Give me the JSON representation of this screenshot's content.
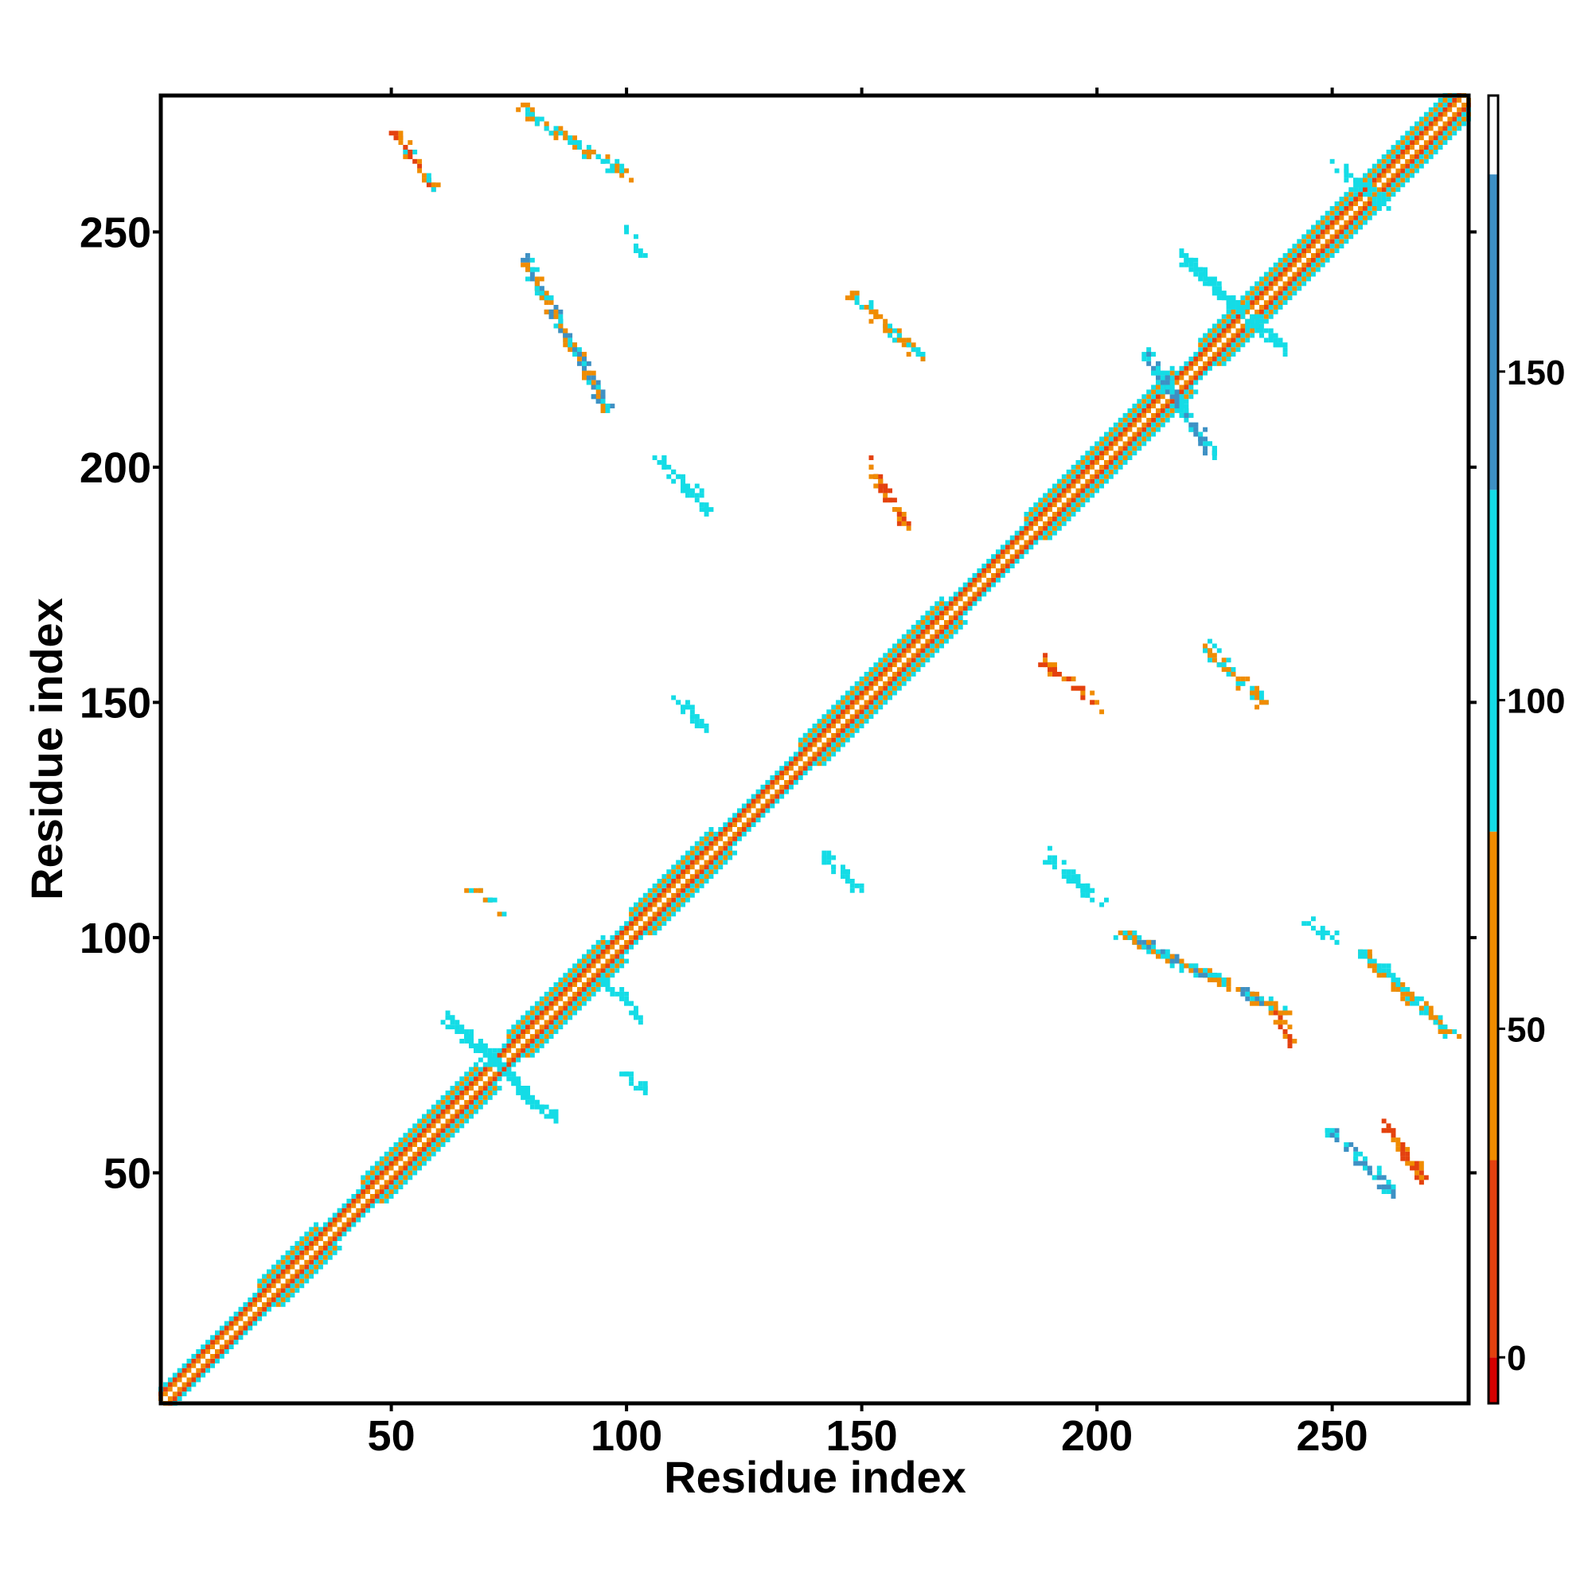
{
  "chart_data": {
    "type": "heatmap",
    "title": "",
    "xlabel": "Residue index",
    "ylabel": "Residue index",
    "xlim": [
      1,
      279
    ],
    "ylim": [
      1,
      279
    ],
    "x_ticks": [
      50,
      100,
      150,
      200,
      250
    ],
    "y_ticks": [
      50,
      100,
      150,
      200,
      250
    ],
    "grid": false,
    "colorbar": {
      "ticks": [
        0,
        50,
        100,
        150
      ],
      "range": [
        -7,
        192
      ],
      "segments": [
        {
          "from": -7,
          "to": 0,
          "color": "#d50000"
        },
        {
          "from": 0,
          "to": 30,
          "color": "#e4410f"
        },
        {
          "from": 30,
          "to": 80,
          "color": "#f08c00"
        },
        {
          "from": 80,
          "to": 132,
          "color": "#14dce6"
        },
        {
          "from": 132,
          "to": 180,
          "color": "#3e90c4"
        },
        {
          "from": 180,
          "to": 192,
          "color": "#ffffff"
        }
      ]
    },
    "diagonal_band": {
      "profile": [
        {
          "offset": 0,
          "color": "#ffffff"
        },
        {
          "offset": 1,
          "color": "#f08c00"
        },
        {
          "offset": 2,
          "color": "#e4410f"
        },
        {
          "offset": 3,
          "color": "#14dce6"
        },
        {
          "offset": 4,
          "color": "#f08c00"
        },
        {
          "offset": 5,
          "color": "#14dce6"
        }
      ],
      "wide_segments": [
        [
          22,
          34
        ],
        [
          44,
          68
        ],
        [
          75,
          95
        ],
        [
          101,
          118
        ],
        [
          137,
          167
        ],
        [
          185,
          216
        ],
        [
          222,
          279
        ]
      ]
    },
    "off_diagonal_clusters": [
      {
        "x": [
          51,
          59
        ],
        "y": [
          259,
          271
        ],
        "colors": [
          "#f08c00",
          "#e4410f",
          "#14dce6"
        ]
      },
      {
        "x": [
          78,
          100
        ],
        "y": [
          262,
          276
        ],
        "colors": [
          "#14dce6",
          "#f08c00"
        ]
      },
      {
        "x": [
          99,
          103
        ],
        "y": [
          245,
          251
        ],
        "colors": [
          "#14dce6"
        ]
      },
      {
        "x": [
          78,
          96
        ],
        "y": [
          212,
          245
        ],
        "colors": [
          "#f08c00",
          "#14dce6",
          "#3e90c4"
        ]
      },
      {
        "x": [
          107,
          118
        ],
        "y": [
          190,
          202
        ],
        "colors": [
          "#14dce6"
        ]
      },
      {
        "x": [
          148,
          163
        ],
        "y": [
          223,
          237
        ],
        "colors": [
          "#14dce6",
          "#f08c00"
        ]
      },
      {
        "x": [
          151,
          160
        ],
        "y": [
          187,
          201
        ],
        "colors": [
          "#f08c00",
          "#e4410f"
        ]
      },
      {
        "x": [
          188,
          201
        ],
        "y": [
          149,
          159
        ],
        "colors": [
          "#f08c00",
          "#e4410f"
        ]
      },
      {
        "x": [
          223,
          236
        ],
        "y": [
          149,
          162
        ],
        "colors": [
          "#14dce6",
          "#f08c00"
        ]
      },
      {
        "x": [
          110,
          117
        ],
        "y": [
          144,
          152
        ],
        "colors": [
          "#14dce6"
        ]
      },
      {
        "x": [
          141,
          150
        ],
        "y": [
          110,
          118
        ],
        "colors": [
          "#14dce6"
        ]
      },
      {
        "x": [
          189,
          201
        ],
        "y": [
          107,
          118
        ],
        "colors": [
          "#14dce6"
        ]
      },
      {
        "x": [
          205,
          240
        ],
        "y": [
          84,
          101
        ],
        "colors": [
          "#14dce6",
          "#3e90c4",
          "#f08c00"
        ]
      },
      {
        "x": [
          237,
          242
        ],
        "y": [
          77,
          85
        ],
        "colors": [
          "#f08c00",
          "#e4410f"
        ]
      },
      {
        "x": [
          244,
          251
        ],
        "y": [
          99,
          104
        ],
        "colors": [
          "#14dce6"
        ]
      },
      {
        "x": [
          256,
          276
        ],
        "y": [
          79,
          97
        ],
        "colors": [
          "#14dce6",
          "#f08c00"
        ]
      },
      {
        "x": [
          249,
          263
        ],
        "y": [
          46,
          59
        ],
        "colors": [
          "#14dce6",
          "#3e90c4"
        ]
      },
      {
        "x": [
          261,
          270
        ],
        "y": [
          48,
          61
        ],
        "colors": [
          "#f08c00",
          "#e4410f"
        ]
      },
      {
        "x": [
          61,
          85
        ],
        "y": [
          61,
          84
        ],
        "colors": [
          "#14dce6"
        ]
      },
      {
        "x": [
          67,
          73
        ],
        "y": [
          106,
          111
        ],
        "colors": [
          "#14dce6",
          "#f08c00"
        ]
      },
      {
        "x": [
          99,
          105
        ],
        "y": [
          67,
          72
        ],
        "colors": [
          "#14dce6"
        ]
      },
      {
        "x": [
          95,
          103
        ],
        "y": [
          83,
          92
        ],
        "colors": [
          "#14dce6"
        ]
      },
      {
        "x": [
          210,
          225
        ],
        "y": [
          202,
          225
        ],
        "colors": [
          "#14dce6",
          "#3e90c4"
        ]
      },
      {
        "x": [
          218,
          240
        ],
        "y": [
          225,
          245
        ],
        "colors": [
          "#14dce6"
        ]
      },
      {
        "x": [
          251,
          262
        ],
        "y": [
          255,
          264
        ],
        "colors": [
          "#14dce6"
        ]
      }
    ]
  }
}
